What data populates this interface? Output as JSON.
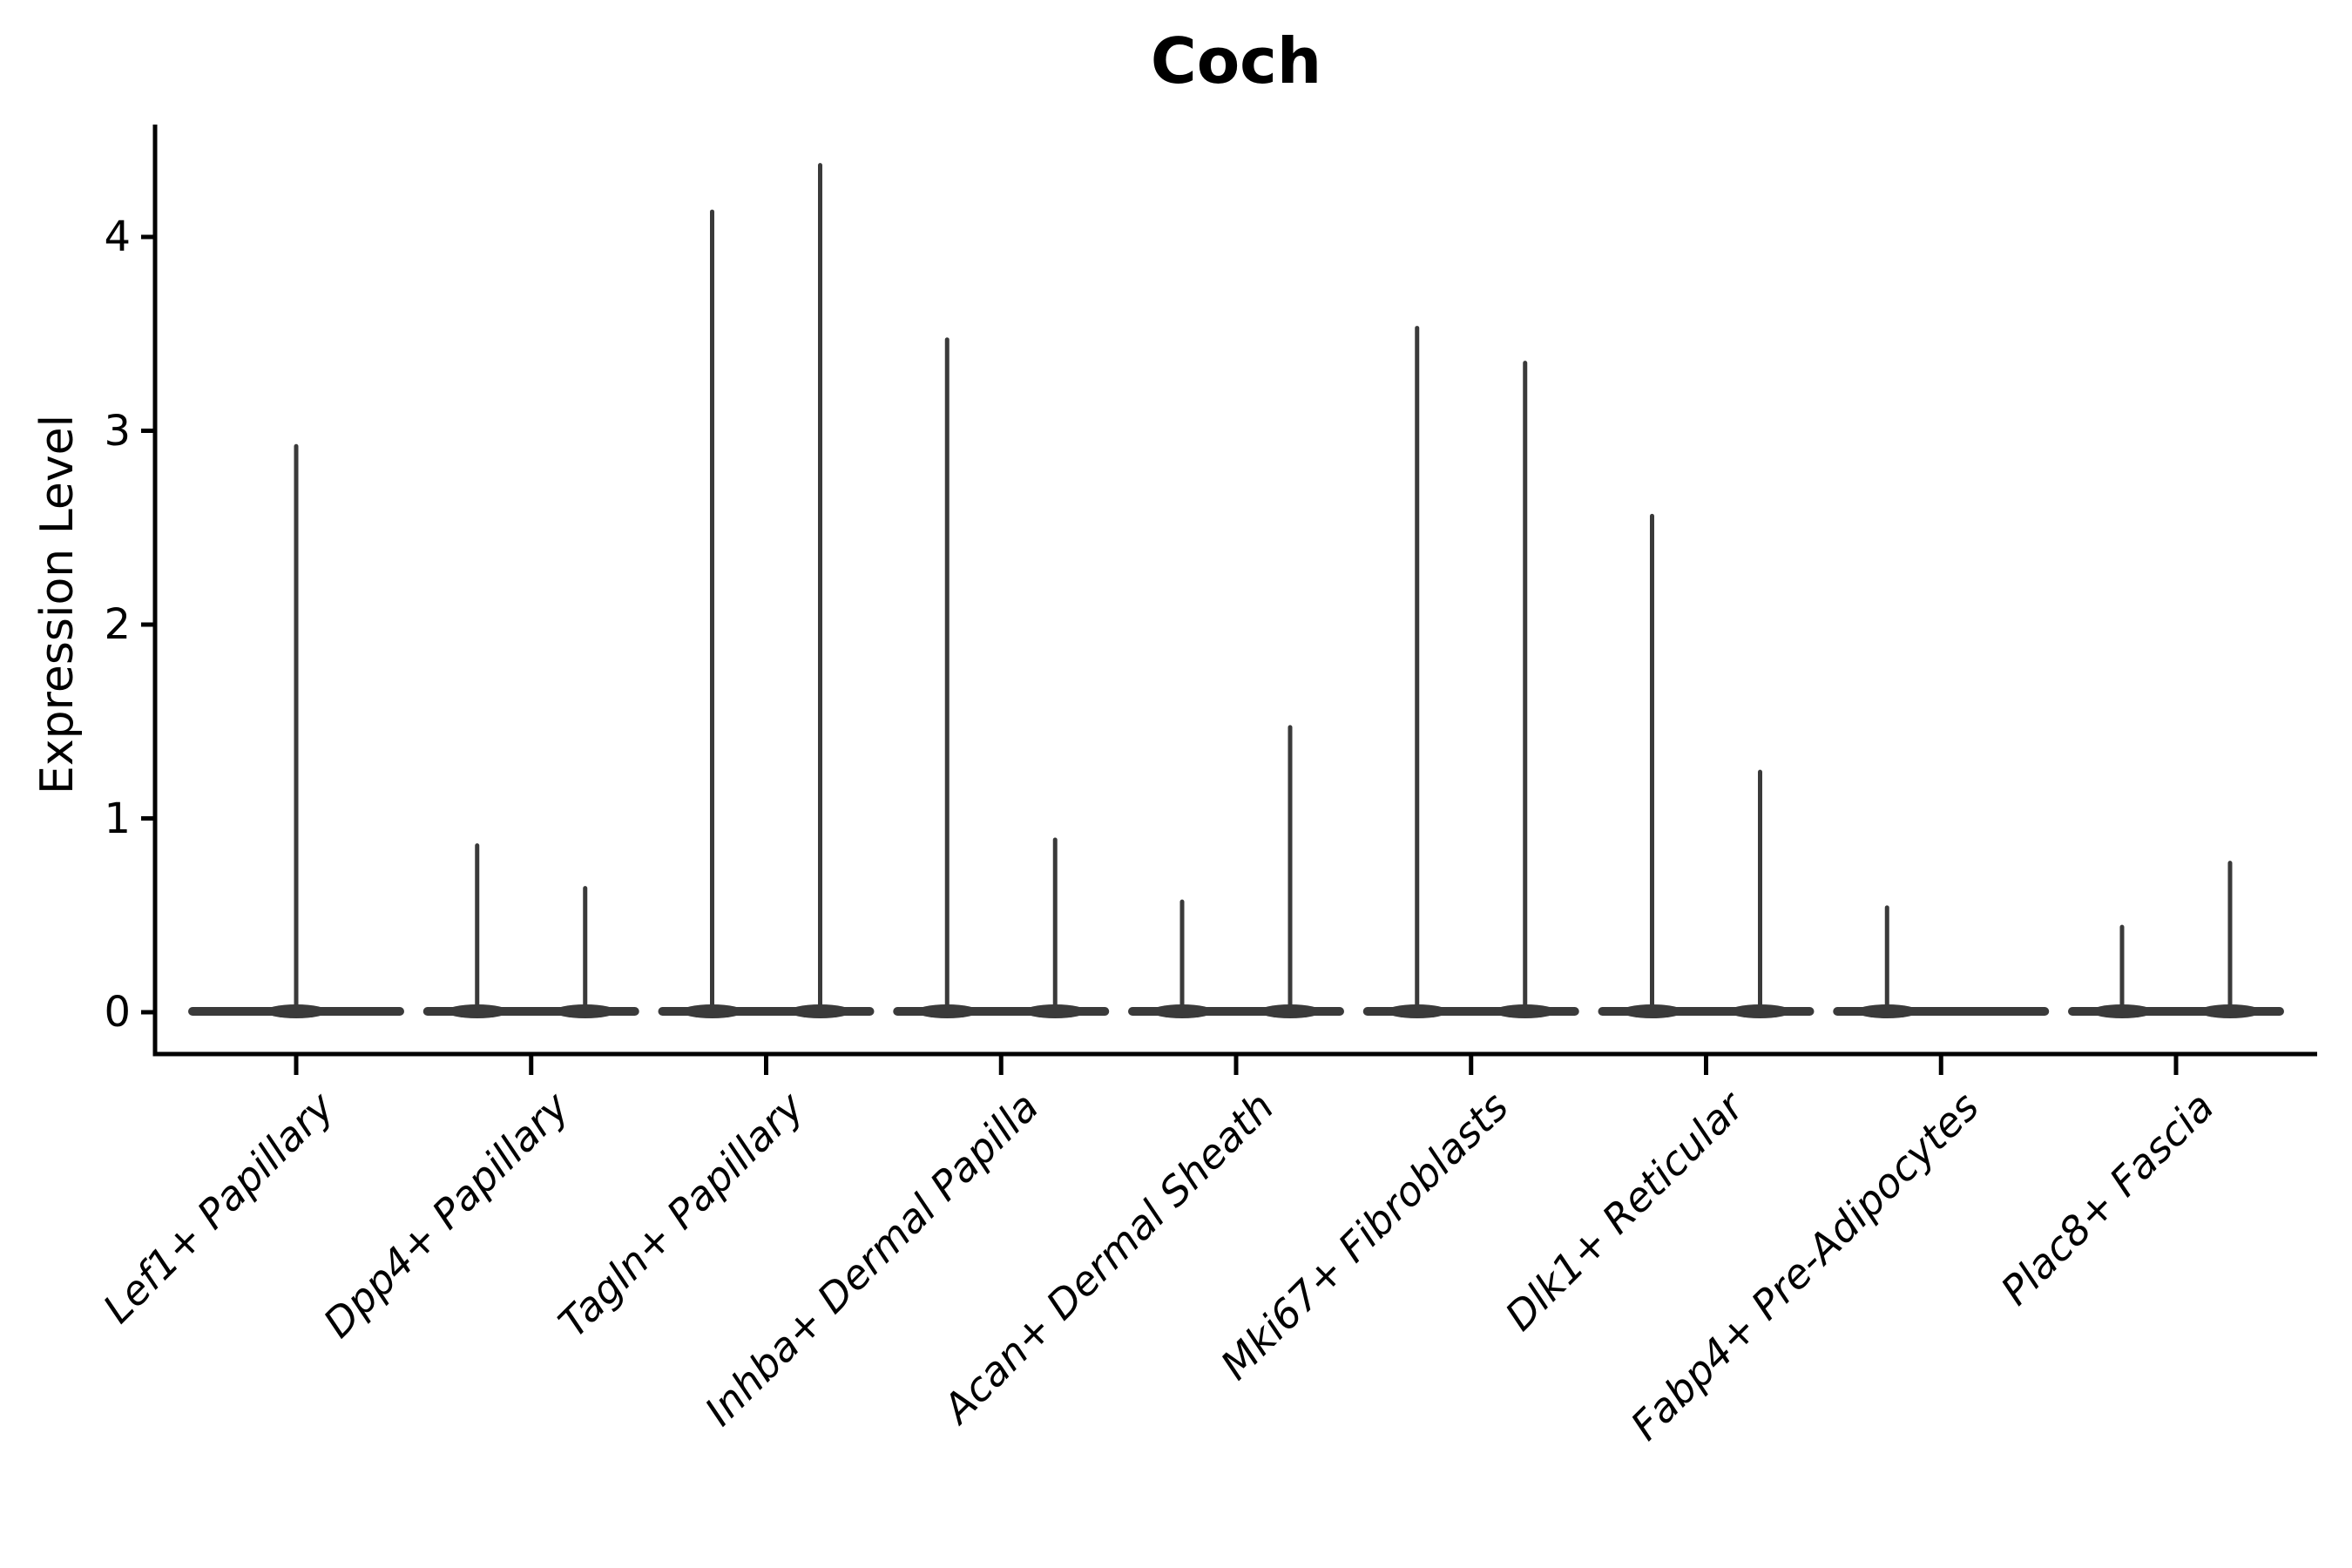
{
  "chart_data": {
    "type": "violin",
    "title": "Coch",
    "ylabel": "Expression Level",
    "xlabel": "",
    "yticks": [
      "0",
      "1",
      "2",
      "3",
      "4"
    ],
    "ytick_values": [
      0,
      1,
      2,
      3,
      4
    ],
    "ylim": [
      -0.22,
      4.58
    ],
    "grid": false,
    "legend": "none",
    "categories": [
      "Lef1+ Papillary",
      "Dpp4+ Papillary",
      "Tagln+ Papillary",
      "Inhba+ Dermal Papilla",
      "Acan+ Dermal Sheath",
      "Mki67+ Fibroblasts",
      "Dlk1+ Reticular",
      "Fabp4+ Pre-Adipocytes",
      "Plac8+ Fascia"
    ],
    "violins": [
      {
        "category": "Lef1+ Papillary",
        "spikes": [
          {
            "position": "center",
            "max": 2.92
          }
        ]
      },
      {
        "category": "Dpp4+ Papillary",
        "spikes": [
          {
            "position": "left",
            "max": 0.86
          },
          {
            "position": "right",
            "max": 0.64
          }
        ]
      },
      {
        "category": "Tagln+ Papillary",
        "spikes": [
          {
            "position": "left",
            "max": 4.13
          },
          {
            "position": "right",
            "max": 4.37
          }
        ]
      },
      {
        "category": "Inhba+ Dermal Papilla",
        "spikes": [
          {
            "position": "left",
            "max": 3.47
          },
          {
            "position": "right",
            "max": 0.89
          }
        ]
      },
      {
        "category": "Acan+ Dermal Sheath",
        "spikes": [
          {
            "position": "left",
            "max": 0.57
          },
          {
            "position": "right",
            "max": 1.47
          }
        ]
      },
      {
        "category": "Mki67+ Fibroblasts",
        "spikes": [
          {
            "position": "left",
            "max": 3.53
          },
          {
            "position": "right",
            "max": 3.35
          }
        ]
      },
      {
        "category": "Dlk1+ Reticular",
        "spikes": [
          {
            "position": "left",
            "max": 2.56
          },
          {
            "position": "right",
            "max": 1.24
          }
        ]
      },
      {
        "category": "Fabp4+ Pre-Adipocytes",
        "spikes": [
          {
            "position": "left",
            "max": 0.54
          }
        ]
      },
      {
        "category": "Plac8+ Fascia",
        "spikes": [
          {
            "position": "left",
            "max": 0.44
          },
          {
            "position": "right",
            "max": 0.77
          }
        ]
      }
    ],
    "style": {
      "violin_color": "#3a3a3a",
      "axis_color": "#000000",
      "text_color": "#000000",
      "background": "#ffffff"
    }
  }
}
